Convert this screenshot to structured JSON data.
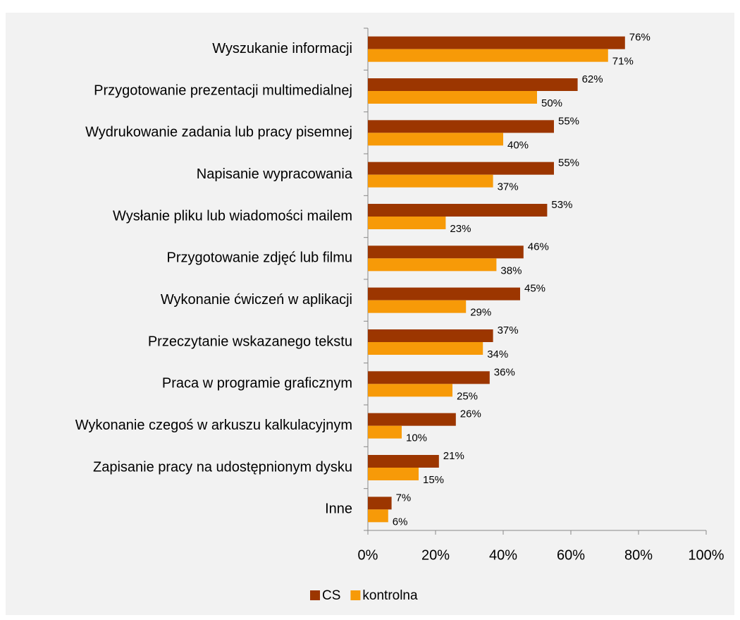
{
  "chart_data": {
    "type": "hbar",
    "categories": [
      "Wyszukanie informacji",
      "Przygotowanie prezentacji multimedialnej",
      "Wydrukowanie zadania lub pracy pisemnej",
      "Napisanie wypracowania",
      "Wysłanie pliku lub wiadomości mailem",
      "Przygotowanie zdjęć lub filmu",
      "Wykonanie ćwiczeń w aplikacji",
      "Przeczytanie wskazanego tekstu",
      "Praca w programie graficznym",
      "Wykonanie czegoś w arkuszu kalkulacyjnym",
      "Zapisanie pracy na udostępnionym dysku",
      "Inne"
    ],
    "series": [
      {
        "name": "CS",
        "color": "#9c3600",
        "values": [
          76,
          62,
          55,
          55,
          53,
          46,
          45,
          37,
          36,
          26,
          21,
          7
        ],
        "value_labels": [
          "76%",
          "62%",
          "55%",
          "55%",
          "53%",
          "46%",
          "45%",
          "37%",
          "36%",
          "26%",
          "21%",
          "7%"
        ]
      },
      {
        "name": "kontrolna",
        "color": "#f79a08",
        "values": [
          71,
          50,
          40,
          37,
          23,
          38,
          29,
          34,
          25,
          10,
          15,
          6
        ],
        "value_labels": [
          "71%",
          "50%",
          "40%",
          "37%",
          "23%",
          "38%",
          "29%",
          "34%",
          "25%",
          "10%",
          "15%",
          "6%"
        ]
      }
    ],
    "xlim": [
      0,
      100
    ],
    "xticks": [
      {
        "value": 0,
        "label": "0%"
      },
      {
        "value": 20,
        "label": "20%"
      },
      {
        "value": 40,
        "label": "40%"
      },
      {
        "value": 60,
        "label": "60%"
      },
      {
        "value": 80,
        "label": "80%"
      },
      {
        "value": 100,
        "label": "100%"
      }
    ],
    "grid": false,
    "legend": "bottom"
  }
}
